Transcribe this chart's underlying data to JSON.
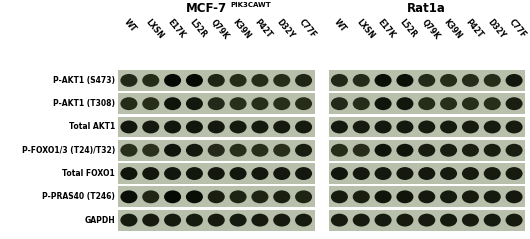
{
  "title_left": "MCF-7",
  "title_left_super": "PIK3CAWT",
  "title_right": "Rat1a",
  "col_labels": [
    "WT",
    "LXSN",
    "E17K",
    "L52R",
    "Q79K",
    "K39N",
    "P42T",
    "D32Y",
    "C77F"
  ],
  "row_labels": [
    "P-AKT1 (S473)",
    "P-AKT1 (T308)",
    "Total AKT1",
    "P-FOXO1/3 (T24)/T32)",
    "Total FOXO1",
    "P-PRAS40 (T246)",
    "GAPDH"
  ],
  "background_color": "#ffffff",
  "panel_bg": "#b8c0ac",
  "mcf7_data": [
    [
      0.25,
      0.2,
      0.98,
      0.98,
      0.35,
      0.18,
      0.18,
      0.18,
      0.32
    ],
    [
      0.2,
      0.15,
      0.72,
      0.65,
      0.22,
      0.12,
      0.12,
      0.12,
      0.18
    ],
    [
      0.68,
      0.62,
      0.68,
      0.68,
      0.62,
      0.6,
      0.6,
      0.6,
      0.6
    ],
    [
      0.12,
      0.08,
      0.72,
      0.62,
      0.22,
      0.12,
      0.12,
      0.12,
      0.48
    ],
    [
      0.72,
      0.68,
      0.68,
      0.68,
      0.65,
      0.65,
      0.65,
      0.65,
      0.65
    ],
    [
      0.82,
      0.32,
      0.98,
      0.88,
      0.48,
      0.38,
      0.38,
      0.48,
      0.38
    ],
    [
      0.58,
      0.55,
      0.55,
      0.55,
      0.55,
      0.55,
      0.55,
      0.55,
      0.55
    ]
  ],
  "rat1a_data": [
    [
      0.28,
      0.22,
      0.82,
      0.82,
      0.22,
      0.18,
      0.18,
      0.18,
      0.68
    ],
    [
      0.22,
      0.18,
      0.72,
      0.68,
      0.18,
      0.12,
      0.12,
      0.12,
      0.48
    ],
    [
      0.62,
      0.58,
      0.62,
      0.62,
      0.58,
      0.58,
      0.58,
      0.58,
      0.58
    ],
    [
      0.18,
      0.18,
      0.72,
      0.72,
      0.52,
      0.48,
      0.48,
      0.48,
      0.48
    ],
    [
      0.68,
      0.62,
      0.62,
      0.62,
      0.62,
      0.58,
      0.58,
      0.58,
      0.58
    ],
    [
      0.58,
      0.48,
      0.72,
      0.72,
      0.62,
      0.58,
      0.58,
      0.58,
      0.62
    ],
    [
      0.58,
      0.55,
      0.55,
      0.55,
      0.55,
      0.55,
      0.55,
      0.55,
      0.55
    ]
  ]
}
